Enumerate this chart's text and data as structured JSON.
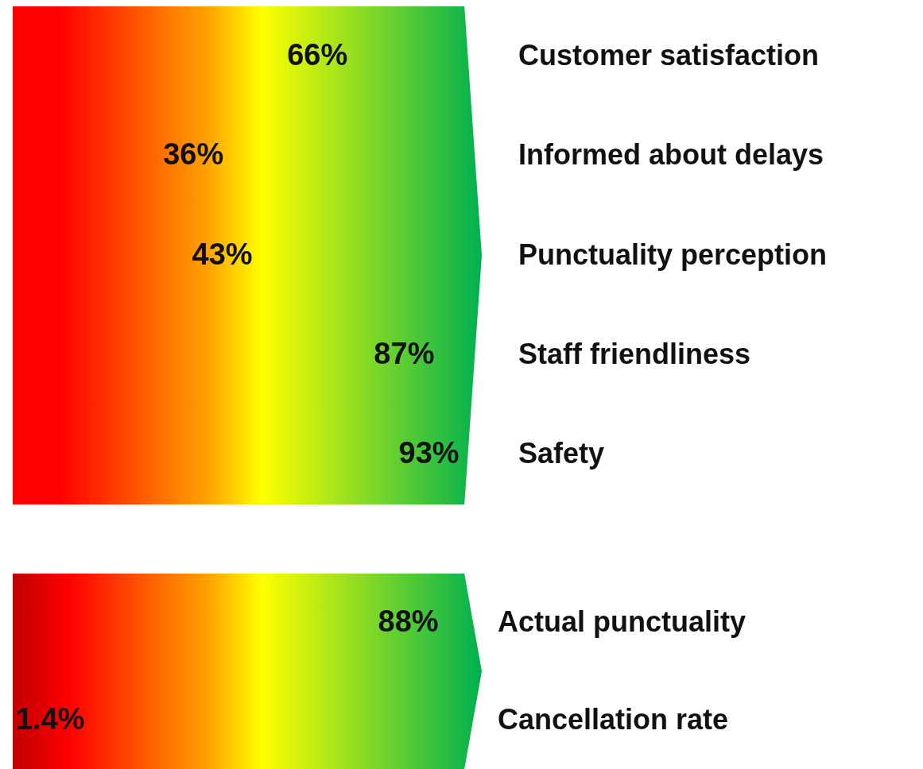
{
  "chart_data": [
    {
      "type": "other",
      "categories": [
        "Customer satisfaction",
        "Informed about delays",
        "Punctuality perception",
        "Staff friendliness",
        "Safety"
      ],
      "values": [
        66,
        36,
        43,
        87,
        93
      ],
      "value_labels": [
        "66%",
        "36%",
        "43%",
        "87%",
        "93%"
      ]
    },
    {
      "type": "other",
      "categories": [
        "Actual punctuality",
        "Cancellation rate"
      ],
      "values": [
        88,
        1.4
      ],
      "value_labels": [
        "88%",
        "1.4%"
      ]
    }
  ]
}
